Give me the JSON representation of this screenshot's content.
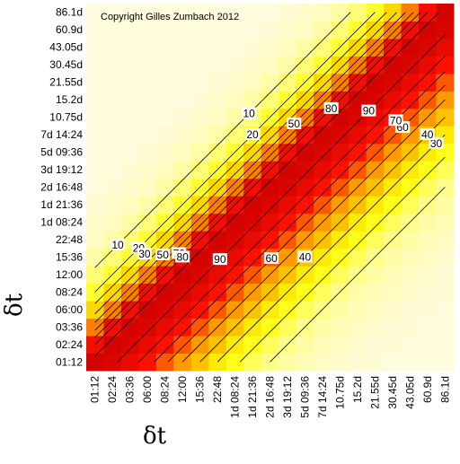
{
  "chart_data": {
    "type": "heatmap",
    "annotation": "Copyright Gilles Zumbach 2012",
    "x_label": "δt",
    "y_label": "δt",
    "categories": [
      "01:12",
      "02:24",
      "03:36",
      "06:00",
      "08:24",
      "12:00",
      "15:36",
      "22:48",
      "1d 08:24",
      "1d 21:36",
      "2d 16:48",
      "3d 19:12",
      "5d 09:36",
      "7d 14:24",
      "10.75d",
      "15.2d",
      "21.55d",
      "30.45d",
      "43.05d",
      "60.9d",
      "86.1d"
    ],
    "zlim": [
      0,
      100
    ],
    "colorscale": [
      "#fffbe6",
      "#ffff00",
      "#ff9a00",
      "#ff1000",
      "#c80000"
    ],
    "contour_color": "#000000",
    "contour_levels": [
      10,
      20,
      30,
      40,
      50,
      60,
      70,
      80,
      90
    ],
    "z": [
      [
        95,
        92,
        85,
        75,
        62,
        50,
        40,
        30,
        22,
        15,
        10,
        7,
        5,
        4,
        3,
        2,
        2,
        1,
        1,
        1,
        1
      ],
      [
        80,
        95,
        92,
        85,
        75,
        62,
        50,
        40,
        30,
        22,
        15,
        10,
        7,
        5,
        4,
        3,
        2,
        2,
        1,
        1,
        1
      ],
      [
        55,
        80,
        95,
        92,
        85,
        75,
        62,
        50,
        40,
        30,
        22,
        15,
        10,
        7,
        5,
        4,
        3,
        2,
        2,
        1,
        1
      ],
      [
        35,
        55,
        80,
        95,
        92,
        85,
        75,
        62,
        50,
        40,
        30,
        22,
        15,
        10,
        7,
        5,
        4,
        3,
        2,
        2,
        1
      ],
      [
        20,
        35,
        55,
        80,
        95,
        92,
        85,
        75,
        62,
        50,
        40,
        30,
        22,
        15,
        10,
        7,
        5,
        4,
        3,
        2,
        2
      ],
      [
        12,
        20,
        35,
        55,
        80,
        95,
        92,
        85,
        75,
        62,
        50,
        40,
        30,
        22,
        15,
        10,
        7,
        5,
        4,
        3,
        2
      ],
      [
        7,
        12,
        20,
        35,
        55,
        80,
        95,
        92,
        85,
        75,
        62,
        50,
        40,
        30,
        22,
        15,
        10,
        7,
        5,
        4,
        3
      ],
      [
        4,
        7,
        12,
        20,
        35,
        55,
        80,
        95,
        92,
        85,
        75,
        62,
        50,
        40,
        30,
        22,
        15,
        10,
        7,
        5,
        4
      ],
      [
        3,
        4,
        7,
        12,
        20,
        35,
        55,
        80,
        95,
        92,
        85,
        75,
        62,
        50,
        40,
        30,
        22,
        15,
        10,
        7,
        5
      ],
      [
        2,
        3,
        4,
        7,
        12,
        20,
        35,
        55,
        80,
        95,
        92,
        85,
        75,
        62,
        50,
        40,
        30,
        22,
        15,
        10,
        7
      ],
      [
        1,
        2,
        3,
        4,
        7,
        12,
        20,
        35,
        55,
        80,
        95,
        92,
        85,
        75,
        62,
        50,
        40,
        30,
        22,
        15,
        10
      ],
      [
        1,
        1,
        2,
        3,
        4,
        7,
        12,
        20,
        35,
        55,
        80,
        95,
        92,
        85,
        75,
        62,
        50,
        40,
        30,
        22,
        15
      ],
      [
        1,
        1,
        1,
        2,
        3,
        4,
        7,
        12,
        20,
        35,
        55,
        80,
        95,
        92,
        85,
        75,
        62,
        50,
        40,
        30,
        22
      ],
      [
        1,
        1,
        1,
        1,
        2,
        3,
        4,
        7,
        12,
        20,
        35,
        55,
        80,
        95,
        92,
        85,
        75,
        62,
        50,
        40,
        30
      ],
      [
        1,
        1,
        1,
        1,
        1,
        2,
        3,
        4,
        7,
        12,
        20,
        35,
        55,
        80,
        95,
        92,
        85,
        75,
        62,
        50,
        40
      ],
      [
        1,
        1,
        1,
        1,
        1,
        1,
        2,
        3,
        4,
        7,
        12,
        20,
        35,
        55,
        80,
        95,
        92,
        85,
        75,
        62,
        50
      ],
      [
        1,
        1,
        1,
        1,
        1,
        1,
        1,
        2,
        3,
        4,
        7,
        12,
        20,
        35,
        55,
        80,
        95,
        92,
        85,
        75,
        62
      ],
      [
        1,
        1,
        1,
        1,
        1,
        1,
        1,
        1,
        2,
        3,
        4,
        7,
        12,
        20,
        35,
        55,
        80,
        95,
        92,
        85,
        75
      ],
      [
        1,
        1,
        1,
        1,
        1,
        1,
        1,
        1,
        1,
        2,
        3,
        4,
        7,
        12,
        20,
        35,
        55,
        80,
        95,
        92,
        85
      ],
      [
        1,
        1,
        1,
        1,
        1,
        1,
        1,
        1,
        1,
        1,
        2,
        3,
        4,
        7,
        12,
        20,
        35,
        55,
        80,
        95,
        92
      ],
      [
        1,
        1,
        1,
        1,
        1,
        1,
        1,
        1,
        1,
        1,
        1,
        2,
        3,
        4,
        7,
        12,
        20,
        35,
        55,
        80,
        95
      ]
    ]
  }
}
